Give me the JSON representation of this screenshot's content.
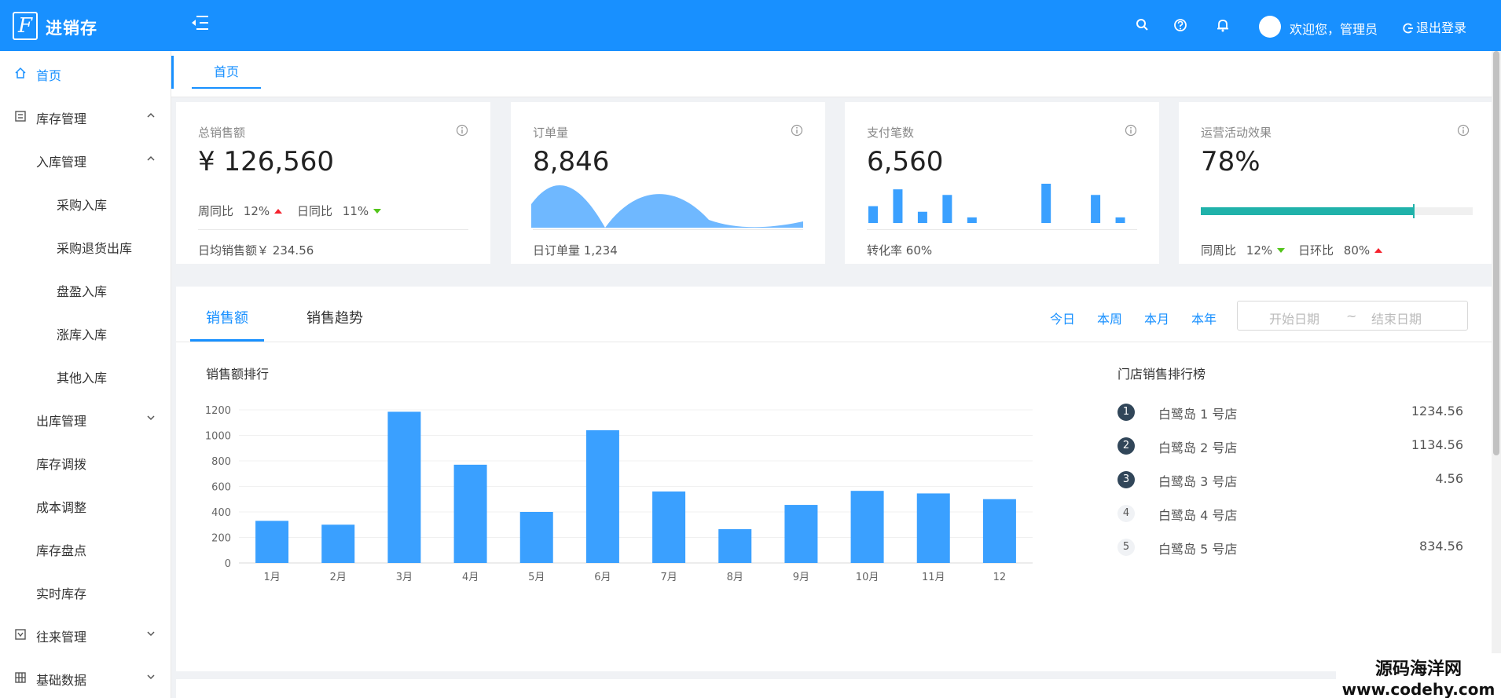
{
  "header": {
    "logo_letter": "F",
    "app_title": "进销存",
    "welcome": "欢迎您，管理员",
    "logout_label": "退出登录",
    "icons": [
      "menu-fold-icon",
      "search-icon",
      "question-icon",
      "bell-icon",
      "logout-icon"
    ],
    "colors": {
      "primary": "#1890ff"
    }
  },
  "sidebar": {
    "items": [
      {
        "label": "首页",
        "icon": "home-icon",
        "level": 0,
        "active": true
      },
      {
        "label": "库存管理",
        "icon": "inventory-icon",
        "level": 0,
        "arrow": "up"
      },
      {
        "label": "入库管理",
        "level": 1,
        "arrow": "up"
      },
      {
        "label": "采购入库",
        "level": 2
      },
      {
        "label": "采购退货出库",
        "level": 2
      },
      {
        "label": "盘盈入库",
        "level": 2
      },
      {
        "label": "涨库入库",
        "level": 2
      },
      {
        "label": "其他入库",
        "level": 2
      },
      {
        "label": "出库管理",
        "level": 1,
        "arrow": "down"
      },
      {
        "label": "库存调拨",
        "level": 1
      },
      {
        "label": "成本调整",
        "level": 1
      },
      {
        "label": "库存盘点",
        "level": 1
      },
      {
        "label": "实时库存",
        "level": 1
      },
      {
        "label": "往来管理",
        "icon": "account-icon",
        "level": 0,
        "arrow": "down"
      },
      {
        "label": "基础数据",
        "icon": "table-icon",
        "level": 0,
        "arrow": "down"
      }
    ]
  },
  "tabs": {
    "home": "首页"
  },
  "cards": {
    "total_sales": {
      "title": "总销售额",
      "value": "¥ 126,560",
      "wow_label": "周同比",
      "wow_value": "12%",
      "dod_label": "日同比",
      "dod_value": "11%",
      "footer_label": "日均销售额￥",
      "footer_value": "234.56"
    },
    "orders": {
      "title": "订单量",
      "value": "8,846",
      "footer_label": "日订单量",
      "footer_value": "1,234"
    },
    "payments": {
      "title": "支付笔数",
      "value": "6,560",
      "footer_label": "转化率",
      "footer_value": "60%",
      "mini_bars": [
        3,
        6,
        2,
        5,
        1,
        0,
        0,
        7,
        0,
        5,
        1
      ]
    },
    "campaign": {
      "title": "运营活动效果",
      "value": "78%",
      "progress": 0.78,
      "wow_label": "同周比",
      "wow_value": "12%",
      "dod_label": "日环比",
      "dod_value": "80%"
    }
  },
  "sales_panel": {
    "tabs": [
      "销售额",
      "销售趋势"
    ],
    "active_tab": 0,
    "ranges": [
      "今日",
      "本周",
      "本月",
      "本年"
    ],
    "date_start_placeholder": "开始日期",
    "date_separator": "~",
    "date_end_placeholder": "结束日期",
    "chart_title": "销售额排行",
    "rank_title": "门店销售排行榜",
    "ranking": [
      {
        "rank": "1",
        "name": "白鹭岛 1 号店",
        "value": "1234.56"
      },
      {
        "rank": "2",
        "name": "白鹭岛 2 号店",
        "value": "1134.56"
      },
      {
        "rank": "3",
        "name": "白鹭岛 3 号店",
        "value": "4.56"
      },
      {
        "rank": "4",
        "name": "白鹭岛 4 号店",
        "value": ""
      },
      {
        "rank": "5",
        "name": "白鹭岛 5 号店",
        "value": "834.56"
      }
    ]
  },
  "chart_data": {
    "type": "bar",
    "title": "销售额排行",
    "categories": [
      "1月",
      "2月",
      "3月",
      "4月",
      "5月",
      "6月",
      "7月",
      "8月",
      "9月",
      "10月",
      "11月",
      "12"
    ],
    "values": [
      330,
      300,
      1185,
      770,
      400,
      1040,
      560,
      265,
      455,
      565,
      545,
      500
    ],
    "yticks": [
      0,
      200,
      400,
      600,
      800,
      1000,
      1200
    ],
    "ylim": [
      0,
      1200
    ],
    "color": "#3aa0ff",
    "grid": true
  },
  "watermark": {
    "line1": "源码海洋网",
    "line2": "www.codehy.com"
  }
}
